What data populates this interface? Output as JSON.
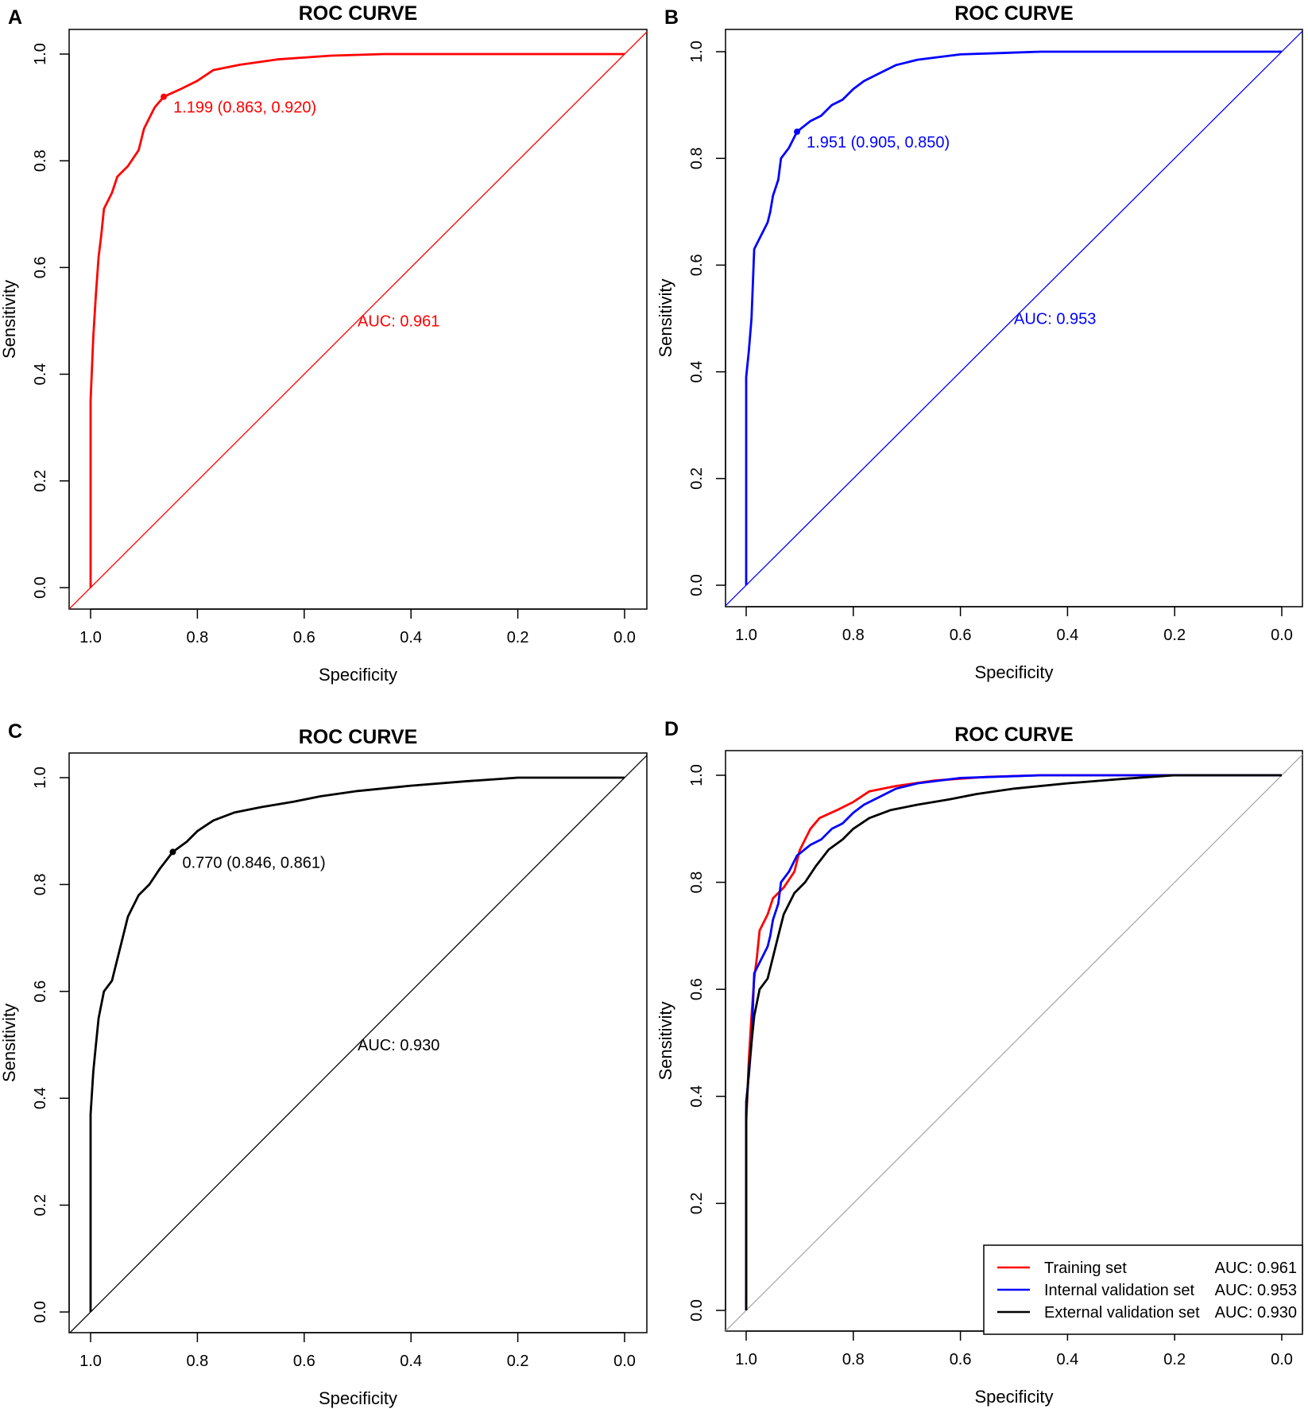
{
  "chart_data": [
    {
      "type": "line",
      "panel": "A",
      "title": "ROC CURVE",
      "xlabel": "Specificity",
      "ylabel": "Sensitivity",
      "xlim": [
        1.0,
        0.0
      ],
      "ylim": [
        0.0,
        1.0
      ],
      "xticks": [
        "1.0",
        "0.8",
        "0.6",
        "0.4",
        "0.2",
        "0.0"
      ],
      "yticks": [
        "0.0",
        "0.2",
        "0.4",
        "0.6",
        "0.8",
        "1.0"
      ],
      "color": "#ff0000",
      "diagonal_color": "#ff0000",
      "auc_label": "AUC: 0.961",
      "threshold_label": "1.199 (0.863, 0.920)",
      "threshold_point": [
        0.863,
        0.92
      ],
      "series": [
        {
          "name": "Training set",
          "color": "#ff0000",
          "x": [
            1,
            1,
            0.995,
            0.99,
            0.985,
            0.98,
            0.975,
            0.96,
            0.95,
            0.93,
            0.91,
            0.9,
            0.89,
            0.88,
            0.863,
            0.83,
            0.8,
            0.77,
            0.72,
            0.65,
            0.55,
            0.45,
            0
          ],
          "y": [
            0,
            0.35,
            0.47,
            0.55,
            0.62,
            0.66,
            0.71,
            0.74,
            0.77,
            0.79,
            0.82,
            0.86,
            0.88,
            0.9,
            0.92,
            0.935,
            0.95,
            0.97,
            0.98,
            0.99,
            0.997,
            1,
            1
          ]
        }
      ]
    },
    {
      "type": "line",
      "panel": "B",
      "title": "ROC CURVE",
      "xlabel": "Specificity",
      "ylabel": "Sensitivity",
      "xlim": [
        1.0,
        0.0
      ],
      "ylim": [
        0.0,
        1.0
      ],
      "xticks": [
        "1.0",
        "0.8",
        "0.6",
        "0.4",
        "0.2",
        "0.0"
      ],
      "yticks": [
        "0.0",
        "0.2",
        "0.4",
        "0.6",
        "0.8",
        "1.0"
      ],
      "color": "#0000ff",
      "diagonal_color": "#0000ff",
      "auc_label": "AUC: 0.953",
      "threshold_label": "1.951 (0.905, 0.850)",
      "threshold_point": [
        0.905,
        0.85
      ],
      "series": [
        {
          "name": "Internal validation set",
          "color": "#0000ff",
          "x": [
            1,
            1,
            0.995,
            0.99,
            0.985,
            0.975,
            0.96,
            0.955,
            0.95,
            0.94,
            0.935,
            0.92,
            0.905,
            0.88,
            0.86,
            0.84,
            0.82,
            0.8,
            0.78,
            0.75,
            0.72,
            0.68,
            0.6,
            0.45,
            0
          ],
          "y": [
            0,
            0.39,
            0.44,
            0.5,
            0.63,
            0.65,
            0.68,
            0.7,
            0.73,
            0.76,
            0.8,
            0.82,
            0.85,
            0.87,
            0.88,
            0.9,
            0.91,
            0.93,
            0.945,
            0.96,
            0.975,
            0.985,
            0.995,
            1,
            1
          ]
        }
      ]
    },
    {
      "type": "line",
      "panel": "C",
      "title": "ROC CURVE",
      "xlabel": "Specificity",
      "ylabel": "Sensitivity",
      "xlim": [
        1.0,
        0.0
      ],
      "ylim": [
        0.0,
        1.0
      ],
      "xticks": [
        "1.0",
        "0.8",
        "0.6",
        "0.4",
        "0.2",
        "0.0"
      ],
      "yticks": [
        "0.0",
        "0.2",
        "0.4",
        "0.6",
        "0.8",
        "1.0"
      ],
      "color": "#000000",
      "diagonal_color": "#000000",
      "auc_label": "AUC: 0.930",
      "threshold_label": "0.770 (0.846, 0.861)",
      "threshold_point": [
        0.846,
        0.861
      ],
      "series": [
        {
          "name": "External validation set",
          "color": "#000000",
          "x": [
            1,
            1,
            0.995,
            0.99,
            0.985,
            0.975,
            0.96,
            0.95,
            0.94,
            0.93,
            0.91,
            0.89,
            0.87,
            0.846,
            0.82,
            0.8,
            0.77,
            0.73,
            0.68,
            0.62,
            0.57,
            0.5,
            0.4,
            0.3,
            0.2,
            0
          ],
          "y": [
            0,
            0.37,
            0.45,
            0.5,
            0.55,
            0.6,
            0.62,
            0.66,
            0.7,
            0.74,
            0.78,
            0.8,
            0.83,
            0.861,
            0.88,
            0.9,
            0.92,
            0.935,
            0.945,
            0.955,
            0.965,
            0.975,
            0.985,
            0.993,
            1,
            1
          ]
        }
      ]
    },
    {
      "type": "line",
      "panel": "D",
      "title": "ROC CURVE",
      "xlabel": "Specificity",
      "ylabel": "Sensitivity",
      "xlim": [
        1.0,
        0.0
      ],
      "ylim": [
        0.0,
        1.0
      ],
      "xticks": [
        "1.0",
        "0.8",
        "0.6",
        "0.4",
        "0.2",
        "0.0"
      ],
      "yticks": [
        "0.0",
        "0.2",
        "0.4",
        "0.6",
        "0.8",
        "1.0"
      ],
      "diagonal_color": "#aaaaaa",
      "legend_position": "bottom-right",
      "legend": [
        {
          "name": "Training set",
          "auc": "AUC: 0.961",
          "color": "#ff0000"
        },
        {
          "name": "Internal validation set",
          "auc": "AUC: 0.953",
          "color": "#0000ff"
        },
        {
          "name": "External validation set",
          "auc": "AUC: 0.930",
          "color": "#000000"
        }
      ],
      "series_ref": [
        "A",
        "B",
        "C"
      ]
    }
  ]
}
